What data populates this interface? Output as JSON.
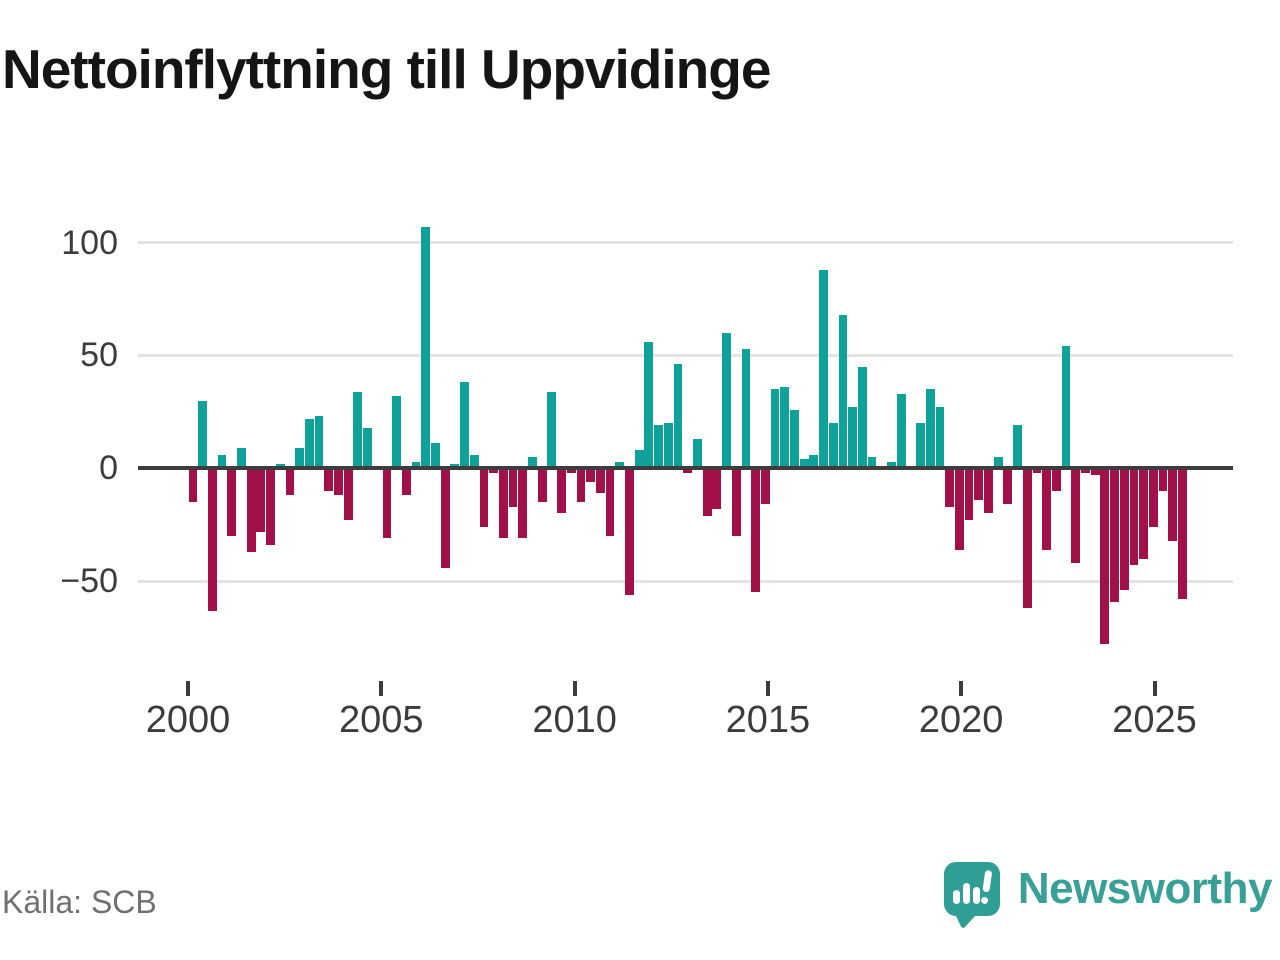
{
  "title": "Nettoinflyttning till Uppvidinge",
  "source": "Källa: SCB",
  "brand": {
    "name": "Newsworthy",
    "icon": "speech-bubble-bar-chart-logo"
  },
  "colors": {
    "positive_bar": "#0FA29A",
    "negative_bar": "#A11048",
    "axis_line": "#3d3d3d",
    "gridline": "#e4e4e4",
    "tick_label": "#3c3c3c",
    "title_text": "#151515",
    "source_text": "#707070",
    "brand_teal": "#39a097"
  },
  "chart_data": {
    "type": "bar",
    "title": "Nettoinflyttning till Uppvidinge",
    "frequency": "quarterly",
    "start": "2000-Q1",
    "end": "2025-Q3",
    "values": [
      -15,
      30,
      -63,
      6,
      -30,
      9,
      -37,
      -28,
      -34,
      2,
      -12,
      9,
      22,
      23,
      -10,
      -12,
      -23,
      34,
      18,
      0,
      -31,
      32,
      -12,
      3,
      107,
      11,
      -44,
      2,
      38,
      6,
      -26,
      -2,
      -31,
      -17,
      -31,
      5,
      -15,
      34,
      -20,
      -2,
      -15,
      -6,
      -11,
      -30,
      3,
      -56,
      8,
      56,
      19,
      20,
      46,
      -2,
      13,
      -21,
      -18,
      60,
      -30,
      53,
      -55,
      -16,
      35,
      36,
      26,
      4,
      6,
      88,
      20,
      68,
      27,
      45,
      5,
      0,
      3,
      33,
      0,
      20,
      35,
      27,
      -17,
      -36,
      -23,
      -14,
      -20,
      5,
      -16,
      19,
      -62,
      -2,
      -36,
      -10,
      54,
      -42,
      -2,
      -3,
      -78,
      -59,
      -54,
      -43,
      -40,
      -26,
      -10,
      -32,
      -58
    ],
    "x_tick_labels": [
      "2000",
      "2005",
      "2010",
      "2015",
      "2020",
      "2025"
    ],
    "x_tick_years": [
      2000,
      2005,
      2010,
      2015,
      2020,
      2025
    ],
    "y_ticks": [
      100,
      50,
      0,
      -50
    ],
    "ylim": [
      -90,
      115
    ],
    "grid": true,
    "legend": false
  }
}
